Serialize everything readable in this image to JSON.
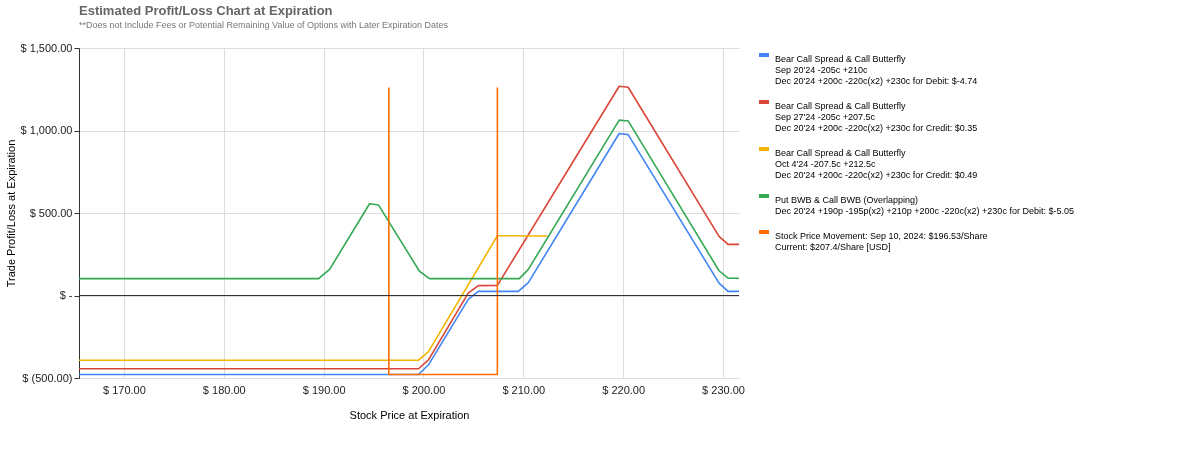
{
  "chart_data": {
    "type": "line",
    "title": "Estimated Profit/Loss Chart at Expiration",
    "subtitle": "**Does not Include Fees or Potential Remaining Value of Options with Later Expiration Dates",
    "xlabel": "Stock Price at Expiration",
    "ylabel": "Trade Profit/Loss at Expiration",
    "xlim": [
      165.5,
      231.6
    ],
    "ylim": [
      -500,
      1500
    ],
    "xticks": [
      {
        "value": 170,
        "label": "$ 170.00"
      },
      {
        "value": 180,
        "label": "$ 180.00"
      },
      {
        "value": 190,
        "label": "$ 190.00"
      },
      {
        "value": 200,
        "label": "$ 200.00"
      },
      {
        "value": 210,
        "label": "$ 210.00"
      },
      {
        "value": 220,
        "label": "$ 220.00"
      },
      {
        "value": 230,
        "label": "$ 230.00"
      }
    ],
    "yticks": [
      {
        "value": -500,
        "label": "$ (500.00)"
      },
      {
        "value": 0,
        "label": "$ -"
      },
      {
        "value": 500,
        "label": "$ 500.00"
      },
      {
        "value": 1000,
        "label": "$ 1,000.00"
      },
      {
        "value": 1500,
        "label": "$ 1,500.00"
      }
    ],
    "grid": true,
    "legend": "top right",
    "marker": "none",
    "line_style": "solid",
    "ref_lines": [
      {
        "axis": "y",
        "value": 0,
        "color": "#333333"
      }
    ],
    "series": [
      {
        "name": "Bear Call Spread & Call Butterfly\nSep 20'24 -205c +210c\nDec 20'24 +200c -220c(x2) +230c for Debit: $-4.74",
        "color": "#4285f4",
        "x": [
          165.5,
          199.5,
          200.5,
          204.5,
          205.5,
          209.5,
          210.5,
          219.6,
          220.5,
          229.6,
          230.5,
          231.6
        ],
        "values": [
          -479,
          -479,
          -420,
          -22,
          25,
          25,
          78,
          982,
          975,
          75,
          25,
          25
        ]
      },
      {
        "name": "Bear Call Spread & Call Butterfly\nSep 27'24 -205c +207.5c\nDec 20'24 +200c -220c(x2) +230c for Credit: $0.35",
        "color": "#db4437",
        "x": [
          165.5,
          199.5,
          200.5,
          204.5,
          205.5,
          207.4,
          219.6,
          220.5,
          229.6,
          230.5,
          231.6
        ],
        "values": [
          -444,
          -444,
          -390,
          16,
          60,
          61,
          1268,
          1262,
          358,
          310,
          310
        ]
      },
      {
        "name": "Bear Call Spread & Call Butterfly\nOct 4'24 -207.5c +212.5c\nDec 20'24 +200c -220c(x2) +230c for Credit: $0.49",
        "color": "#f4b400",
        "x": [
          165.5,
          199.5,
          200.5,
          207.4,
          212.4
        ],
        "values": [
          -392,
          -392,
          -340,
          362,
          361
        ]
      },
      {
        "name": "Put BWB & Call BWB (Overlapping)\nDec 20'24 +190p -195p(x2) +210p +200c -220c(x2) +230c for Debit: $-5.05",
        "color": "#34a853",
        "x": [
          165.5,
          189.5,
          190.6,
          194.6,
          195.5,
          199.6,
          200.6,
          209.6,
          210.5,
          219.6,
          220.5,
          229.6,
          230.5,
          231.6
        ],
        "values": [
          102,
          102,
          158,
          556,
          548,
          147,
          102,
          102,
          158,
          1063,
          1058,
          150,
          105,
          105
        ]
      },
      {
        "name": "Stock Price Movement: Sep 10, 2024: $196.53/Share\nCurrent: $207.4/Share [USD]",
        "color": "#ff6d01",
        "x": [
          196.53,
          196.53,
          207.4,
          207.4
        ],
        "values": [
          1260,
          -479,
          -479,
          1260
        ]
      }
    ]
  }
}
